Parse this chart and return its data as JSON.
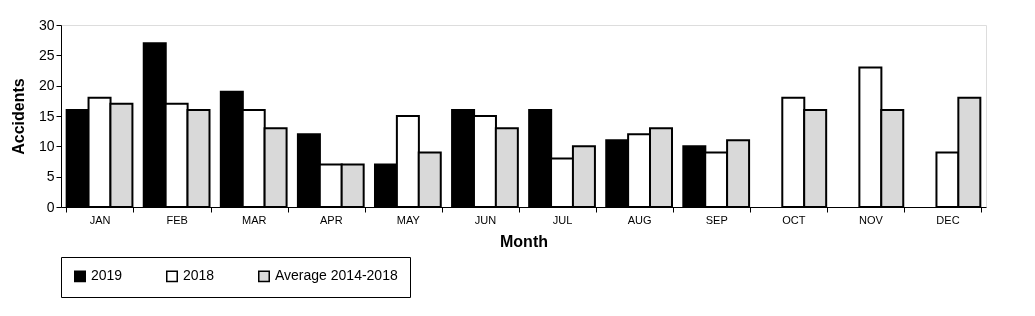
{
  "chart_data": {
    "type": "bar",
    "xlabel": "Month",
    "ylabel": "Accidents",
    "categories": [
      "JAN",
      "FEB",
      "MAR",
      "APR",
      "MAY",
      "JUN",
      "JUL",
      "AUG",
      "SEP",
      "OCT",
      "NOV",
      "DEC"
    ],
    "series": [
      {
        "name": "2019",
        "color": "#000000",
        "values": [
          16,
          27,
          19,
          12,
          7,
          16,
          16,
          11,
          10,
          null,
          null,
          null
        ]
      },
      {
        "name": "2018",
        "color": "#ffffff",
        "values": [
          18,
          17,
          16,
          7,
          15,
          15,
          8,
          12,
          9,
          18,
          23,
          9
        ]
      },
      {
        "name": "Average 2014-2018",
        "color": "#d9d9d9",
        "values": [
          17,
          16,
          13,
          7,
          9,
          13,
          10,
          13,
          11,
          16,
          16,
          18
        ]
      }
    ],
    "ylim": [
      0,
      30
    ],
    "yticks": [
      0,
      5,
      10,
      15,
      20,
      25,
      30
    ],
    "grid": false,
    "legend": "bottom"
  }
}
